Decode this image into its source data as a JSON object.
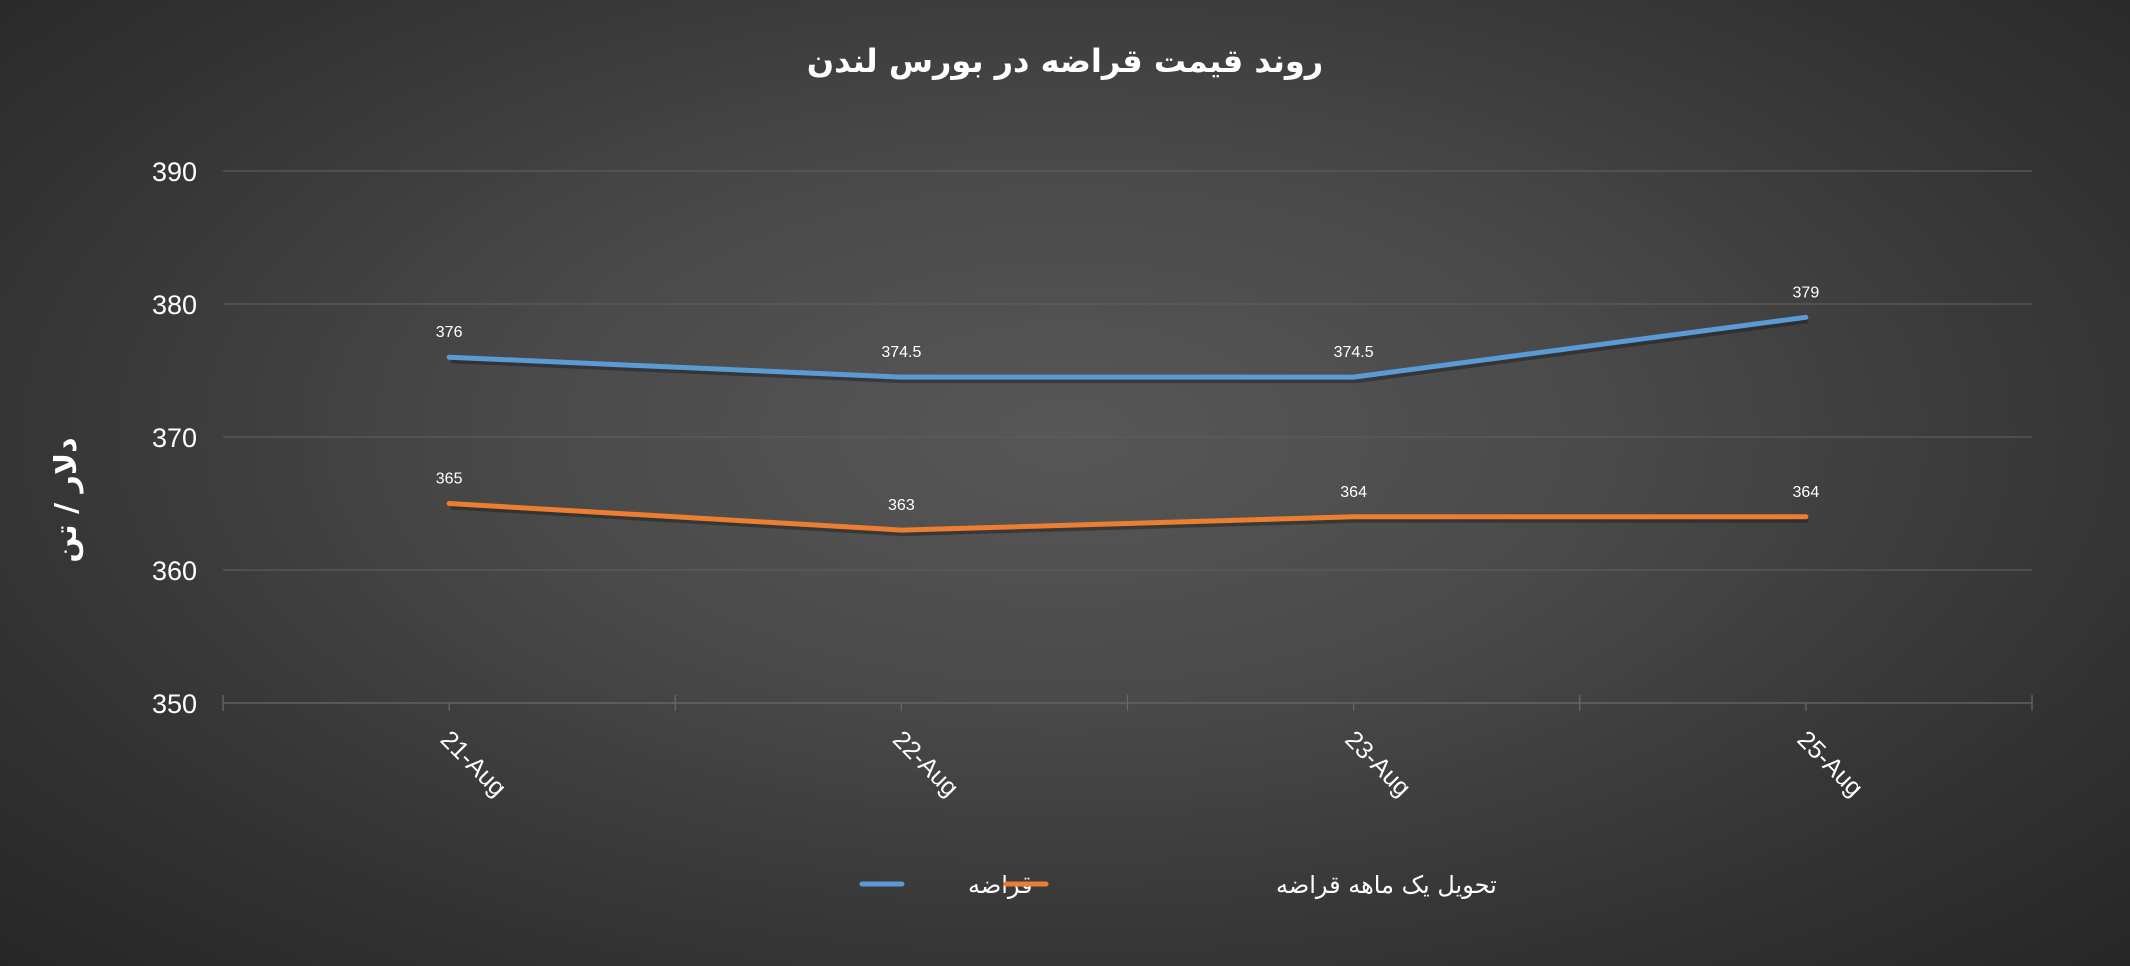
{
  "chart_data": {
    "type": "line",
    "title": "روند قیمت قراضه در بورس لندن",
    "xlabel": "",
    "ylabel": "دلار / تن",
    "categories": [
      "21-Aug",
      "22-Aug",
      "23-Aug",
      "25-Aug"
    ],
    "ylim": [
      350,
      390
    ],
    "yticks": [
      350,
      360,
      370,
      380,
      390
    ],
    "grid": true,
    "legend_position": "bottom",
    "series": [
      {
        "name": "قراضه",
        "values": [
          376,
          374.5,
          374.5,
          379
        ],
        "labels": [
          "376",
          "374.5",
          "374.5",
          "379"
        ],
        "color": "#5b9bd5"
      },
      {
        "name": "تحویل یک ماهه قراضه",
        "values": [
          365,
          363,
          364,
          364
        ],
        "labels": [
          "365",
          "363",
          "364",
          "364"
        ],
        "color": "#ed7d31"
      }
    ]
  }
}
